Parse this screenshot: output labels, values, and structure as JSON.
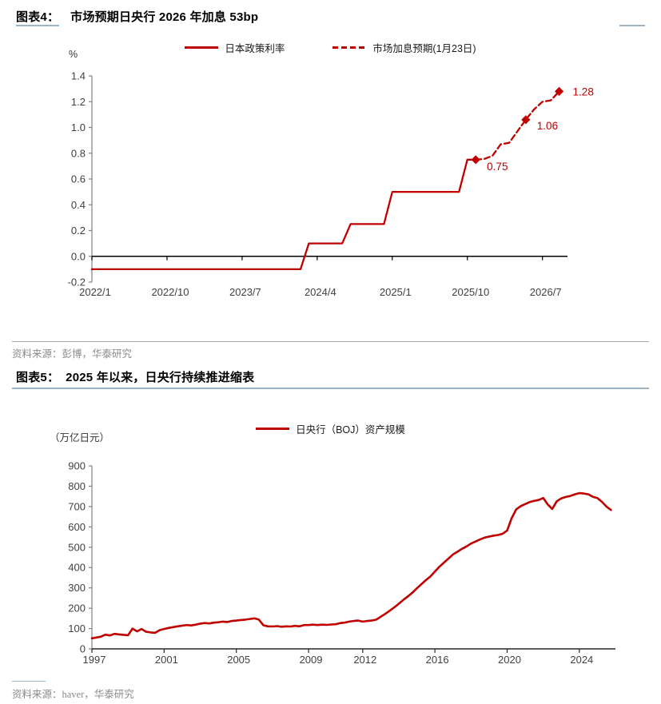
{
  "figure4": {
    "label": "图表4：",
    "title": "市场预期日央行 2026 年加息 53bp",
    "unit": "%",
    "source": "资料来源：彭博，华泰研究",
    "legend": [
      {
        "label": "日本政策利率",
        "dashed": false
      },
      {
        "label": "市场加息预期(1月23日)",
        "dashed": true
      }
    ]
  },
  "figure5": {
    "label": "图表5：",
    "title": "2025 年以来，日央行持续推进缩表",
    "unit": "（万亿日元）",
    "source": "资料来源：haver，华泰研究",
    "legend": [
      {
        "label": "日央行（BOJ）资产规模",
        "dashed": false
      }
    ]
  },
  "colors": {
    "series_red": "#c00000",
    "axis_gray": "#808080",
    "zero_line_black": "#000000",
    "tick_text": "#404040",
    "divider_gray": "#ababab",
    "accent_blue_gray": "#9db3c8",
    "source_text": "#8a8a8a"
  },
  "chart_data": [
    {
      "type": "line",
      "title": "市场预期日央行 2026 年加息 53bp",
      "ylabel": "%",
      "ylim": [
        -0.2,
        1.4
      ],
      "ytick_step": 0.2,
      "ytick_decimals": 1,
      "grid": false,
      "legend_position": "top",
      "x_domain": [
        "2022/1",
        "2026/10"
      ],
      "x_ticks": [
        "2022/1",
        "2022/10",
        "2023/7",
        "2024/4",
        "2025/1",
        "2025/10",
        "2026/7"
      ],
      "series": [
        {
          "name": "日本政策利率",
          "dashed": false,
          "points": [
            [
              "2022/1",
              -0.1
            ],
            [
              "2024/2",
              -0.1
            ],
            [
              "2024/3",
              0.1
            ],
            [
              "2024/7",
              0.1
            ],
            [
              "2024/8",
              0.25
            ],
            [
              "2024/12",
              0.25
            ],
            [
              "2025/1",
              0.5
            ],
            [
              "2025/9",
              0.5
            ],
            [
              "2025/10",
              0.75
            ],
            [
              "2025/11",
              0.75
            ]
          ]
        },
        {
          "name": "市场加息预期(1月23日)",
          "dashed": true,
          "points": [
            [
              "2025/11",
              0.75
            ],
            [
              "2025/12",
              0.755
            ],
            [
              "2026/1",
              0.78
            ],
            [
              "2026/2",
              0.87
            ],
            [
              "2026/3",
              0.88
            ],
            [
              "2026/4",
              0.97
            ],
            [
              "2026/5",
              1.06
            ],
            [
              "2026/6",
              1.14
            ],
            [
              "2026/7",
              1.2
            ],
            [
              "2026/8",
              1.21
            ],
            [
              "2026/9",
              1.28
            ]
          ],
          "markers": [
            {
              "x": "2025/11",
              "y": 0.75,
              "label": "0.75",
              "dx": 14,
              "dy": 13
            },
            {
              "x": "2026/5",
              "y": 1.06,
              "label": "1.06",
              "dx": 14,
              "dy": 12
            },
            {
              "x": "2026/9",
              "y": 1.28,
              "label": "1.28",
              "dx": 17,
              "dy": 5
            }
          ]
        }
      ]
    },
    {
      "type": "line",
      "title": "2025 年以来，日央行持续推进缩表",
      "ylabel": "（万亿日元）",
      "ylim": [
        0,
        900
      ],
      "ytick_step": 100,
      "ytick_decimals": 0,
      "grid": false,
      "legend_position": "top",
      "x_domain": [
        1997,
        2026
      ],
      "x_ticks": [
        1997,
        2001,
        2005,
        2009,
        2012,
        2016,
        2020,
        2024
      ],
      "series": [
        {
          "name": "日央行（BOJ）资产规模",
          "dashed": false,
          "x_start": 1997.0,
          "x_step": 0.25,
          "values": [
            52,
            56,
            60,
            70,
            66,
            74,
            71,
            69,
            67,
            100,
            86,
            98,
            84,
            81,
            79,
            92,
            98,
            103,
            107,
            111,
            114,
            117,
            115,
            119,
            124,
            127,
            125,
            129,
            131,
            134,
            132,
            137,
            139,
            142,
            144,
            147,
            150,
            144,
            116,
            111,
            110,
            112,
            109,
            111,
            110,
            113,
            111,
            117,
            117,
            119,
            117,
            119,
            118,
            120,
            121,
            127,
            129,
            134,
            137,
            139,
            134,
            137,
            139,
            144,
            158,
            172,
            188,
            204,
            222,
            241,
            258,
            276,
            298,
            318,
            338,
            356,
            380,
            404,
            424,
            444,
            464,
            478,
            492,
            504,
            518,
            528,
            538,
            547,
            552,
            557,
            560,
            566,
            582,
            642,
            686,
            702,
            712,
            722,
            728,
            732,
            742,
            710,
            688,
            726,
            740,
            747,
            752,
            760,
            766,
            764,
            760,
            748,
            742,
            723,
            700,
            683
          ]
        }
      ]
    }
  ]
}
